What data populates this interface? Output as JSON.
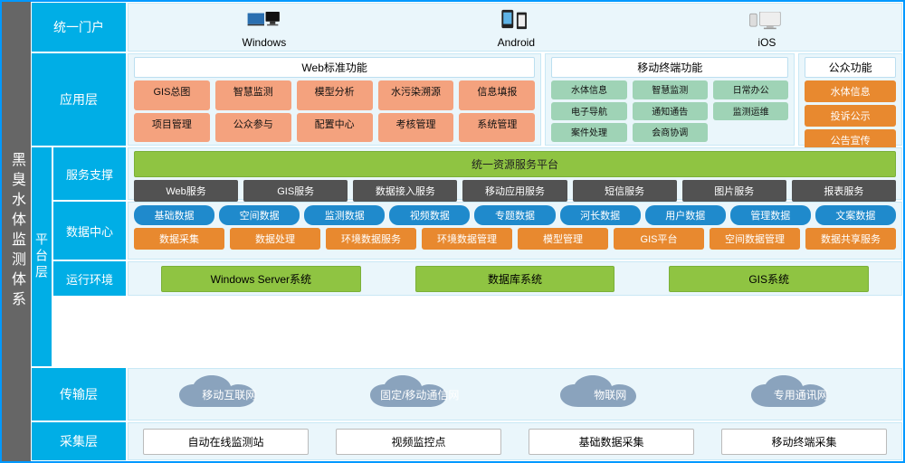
{
  "colors": {
    "frame_border": "#0099ff",
    "left_bg": "#666666",
    "side_bg": "#00aee6",
    "content_bg": "#eaf6fb",
    "content_border": "#c9e8f5",
    "salmon": "#f4a27e",
    "orange": "#e8892f",
    "blue_pill": "#1f8acc",
    "green": "#8fc442",
    "dark": "#525252",
    "cloud": "#8aa3bd"
  },
  "left_title": "黑臭水体监测体系",
  "portals": {
    "label": "统一门户",
    "items": [
      "Windows",
      "Android",
      "iOS"
    ]
  },
  "app_layer": {
    "label": "应用层",
    "sections": {
      "web": {
        "title": "Web标准功能",
        "rows": [
          [
            "GIS总图",
            "智慧监测",
            "模型分析",
            "水污染溯源",
            "信息填报"
          ],
          [
            "项目管理",
            "公众参与",
            "配置中心",
            "考核管理",
            "系统管理"
          ]
        ]
      },
      "mobile": {
        "title": "移动终端功能",
        "rows": [
          [
            "水体信息",
            "智慧监测",
            "日常办公"
          ],
          [
            "电子导航",
            "通知通告",
            "监测运维"
          ],
          [
            "案件处理",
            "会商协调"
          ]
        ]
      },
      "public": {
        "title": "公众功能",
        "items": [
          "水体信息",
          "投诉公示",
          "公告宣传"
        ]
      }
    }
  },
  "platform": {
    "label": "平台层",
    "service": {
      "label": "服务支撑",
      "banner": "统一资源服务平台",
      "items": [
        "Web服务",
        "GIS服务",
        "数据接入服务",
        "移动应用服务",
        "短信服务",
        "图片服务",
        "报表服务"
      ]
    },
    "data": {
      "label": "数据中心",
      "row1": [
        "基础数据",
        "空间数据",
        "监测数据",
        "视频数据",
        "专题数据",
        "河长数据",
        "用户数据",
        "管理数据",
        "文案数据"
      ],
      "row2": [
        "数据采集",
        "数据处理",
        "环境数据服务",
        "环境数据管理",
        "模型管理",
        "GIS平台",
        "空间数据管理",
        "数据共享服务"
      ]
    },
    "env": {
      "label": "运行环境",
      "items": [
        "Windows Server系统",
        "数据库系统",
        "GIS系统"
      ]
    }
  },
  "transport": {
    "label": "传输层",
    "clouds": [
      "移动互联网",
      "固定/移动通信网",
      "物联网",
      "专用通讯网"
    ]
  },
  "collect": {
    "label": "采集层",
    "items": [
      "自动在线监测站",
      "视频监控点",
      "基础数据采集",
      "移动终端采集"
    ]
  }
}
